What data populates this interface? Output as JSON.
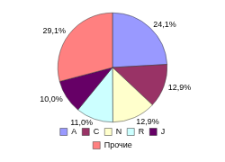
{
  "chart_data": {
    "type": "pie",
    "categories": [
      "A",
      "C",
      "N",
      "R",
      "J",
      "Прочие"
    ],
    "values": [
      24.1,
      12.9,
      12.9,
      11.0,
      10.0,
      29.1
    ],
    "value_labels": [
      "24,1%",
      "12,9%",
      "12,9%",
      "11,0%",
      "10,0%",
      "29,1%"
    ],
    "colors": [
      "#9999ff",
      "#993366",
      "#ffffcc",
      "#ccffff",
      "#660066",
      "#ff8080"
    ],
    "legend": "bottom",
    "data_labels": true
  }
}
